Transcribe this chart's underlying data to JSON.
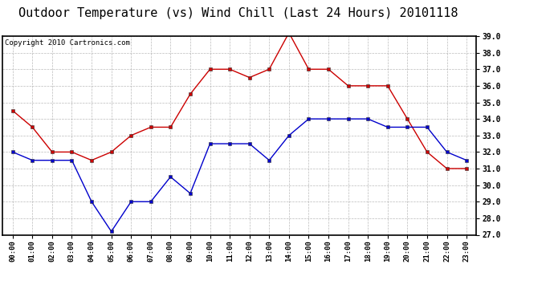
{
  "title": "Outdoor Temperature (vs) Wind Chill (Last 24 Hours) 20101118",
  "copyright": "Copyright 2010 Cartronics.com",
  "hours": [
    "00:00",
    "01:00",
    "02:00",
    "03:00",
    "04:00",
    "05:00",
    "06:00",
    "07:00",
    "08:00",
    "09:00",
    "10:00",
    "11:00",
    "12:00",
    "13:00",
    "14:00",
    "15:00",
    "16:00",
    "17:00",
    "18:00",
    "19:00",
    "20:00",
    "21:00",
    "22:00",
    "23:00"
  ],
  "outdoor_temp": [
    32.0,
    31.5,
    31.5,
    31.5,
    29.0,
    27.2,
    29.0,
    29.0,
    30.5,
    29.5,
    32.5,
    32.5,
    32.5,
    31.5,
    33.0,
    34.0,
    34.0,
    34.0,
    34.0,
    33.5,
    33.5,
    33.5,
    32.0,
    31.5
  ],
  "wind_chill": [
    34.5,
    33.5,
    32.0,
    32.0,
    31.5,
    32.0,
    33.0,
    33.5,
    33.5,
    35.5,
    37.0,
    37.0,
    36.5,
    37.0,
    39.2,
    37.0,
    37.0,
    36.0,
    36.0,
    36.0,
    34.0,
    32.0,
    31.0,
    31.0
  ],
  "temp_color": "#0000cc",
  "chill_color": "#cc0000",
  "bg_color": "#ffffff",
  "grid_color": "#aaaaaa",
  "ymin": 27.0,
  "ymax": 39.0,
  "yticks": [
    27.0,
    28.0,
    29.0,
    30.0,
    31.0,
    32.0,
    33.0,
    34.0,
    35.0,
    36.0,
    37.0,
    38.0,
    39.0
  ],
  "title_fontsize": 11,
  "copyright_fontsize": 6.5
}
